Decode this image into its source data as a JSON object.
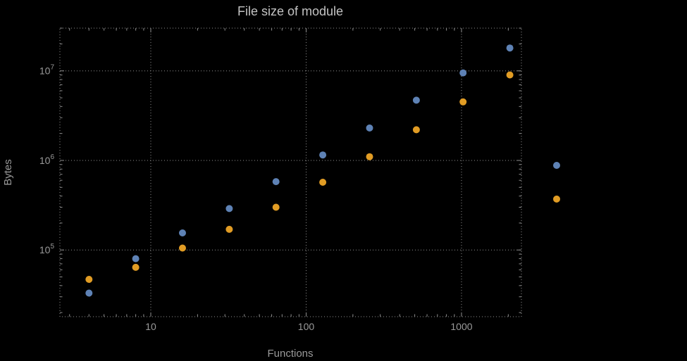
{
  "chart_data": {
    "type": "scatter",
    "title": "File size of module",
    "xlabel": "Functions",
    "ylabel": "Bytes",
    "x_scale": "log",
    "y_scale": "log",
    "xlim": [
      2.6,
      2430
    ],
    "ylim": [
      18000,
      30000000
    ],
    "grid": true,
    "legend": "none",
    "marker_size": 5,
    "x": [
      4,
      8,
      16,
      32,
      64,
      128,
      256,
      512,
      1024,
      2048,
      4096
    ],
    "series": [
      {
        "name": "series-blue",
        "color": "#5e82b5",
        "values": [
          33000,
          80000,
          155000,
          290000,
          580000,
          1150000,
          2300000,
          4700000,
          9500000,
          18000000,
          880000
        ]
      },
      {
        "name": "series-orange",
        "color": "#e19c24",
        "values": [
          47000,
          64000,
          105000,
          170000,
          300000,
          570000,
          1100000,
          2200000,
          4500000,
          9000000,
          370000
        ]
      }
    ],
    "x_ticks": [
      {
        "label": "10",
        "value": 10
      },
      {
        "label": "100",
        "value": 100
      },
      {
        "label": "1000",
        "value": 1000
      }
    ],
    "y_ticks": [
      {
        "base": "10",
        "exp": "5",
        "value": 100000
      },
      {
        "base": "10",
        "exp": "6",
        "value": 1000000
      },
      {
        "base": "10",
        "exp": "7",
        "value": 10000000
      }
    ],
    "colors": {
      "background": "#000000",
      "frame": "#8f8f8f",
      "grid": "#8f8f8f",
      "title": "#c3c3c3",
      "tick_text": "#9a9a9a",
      "axis_label": "#9a9a9a"
    }
  }
}
